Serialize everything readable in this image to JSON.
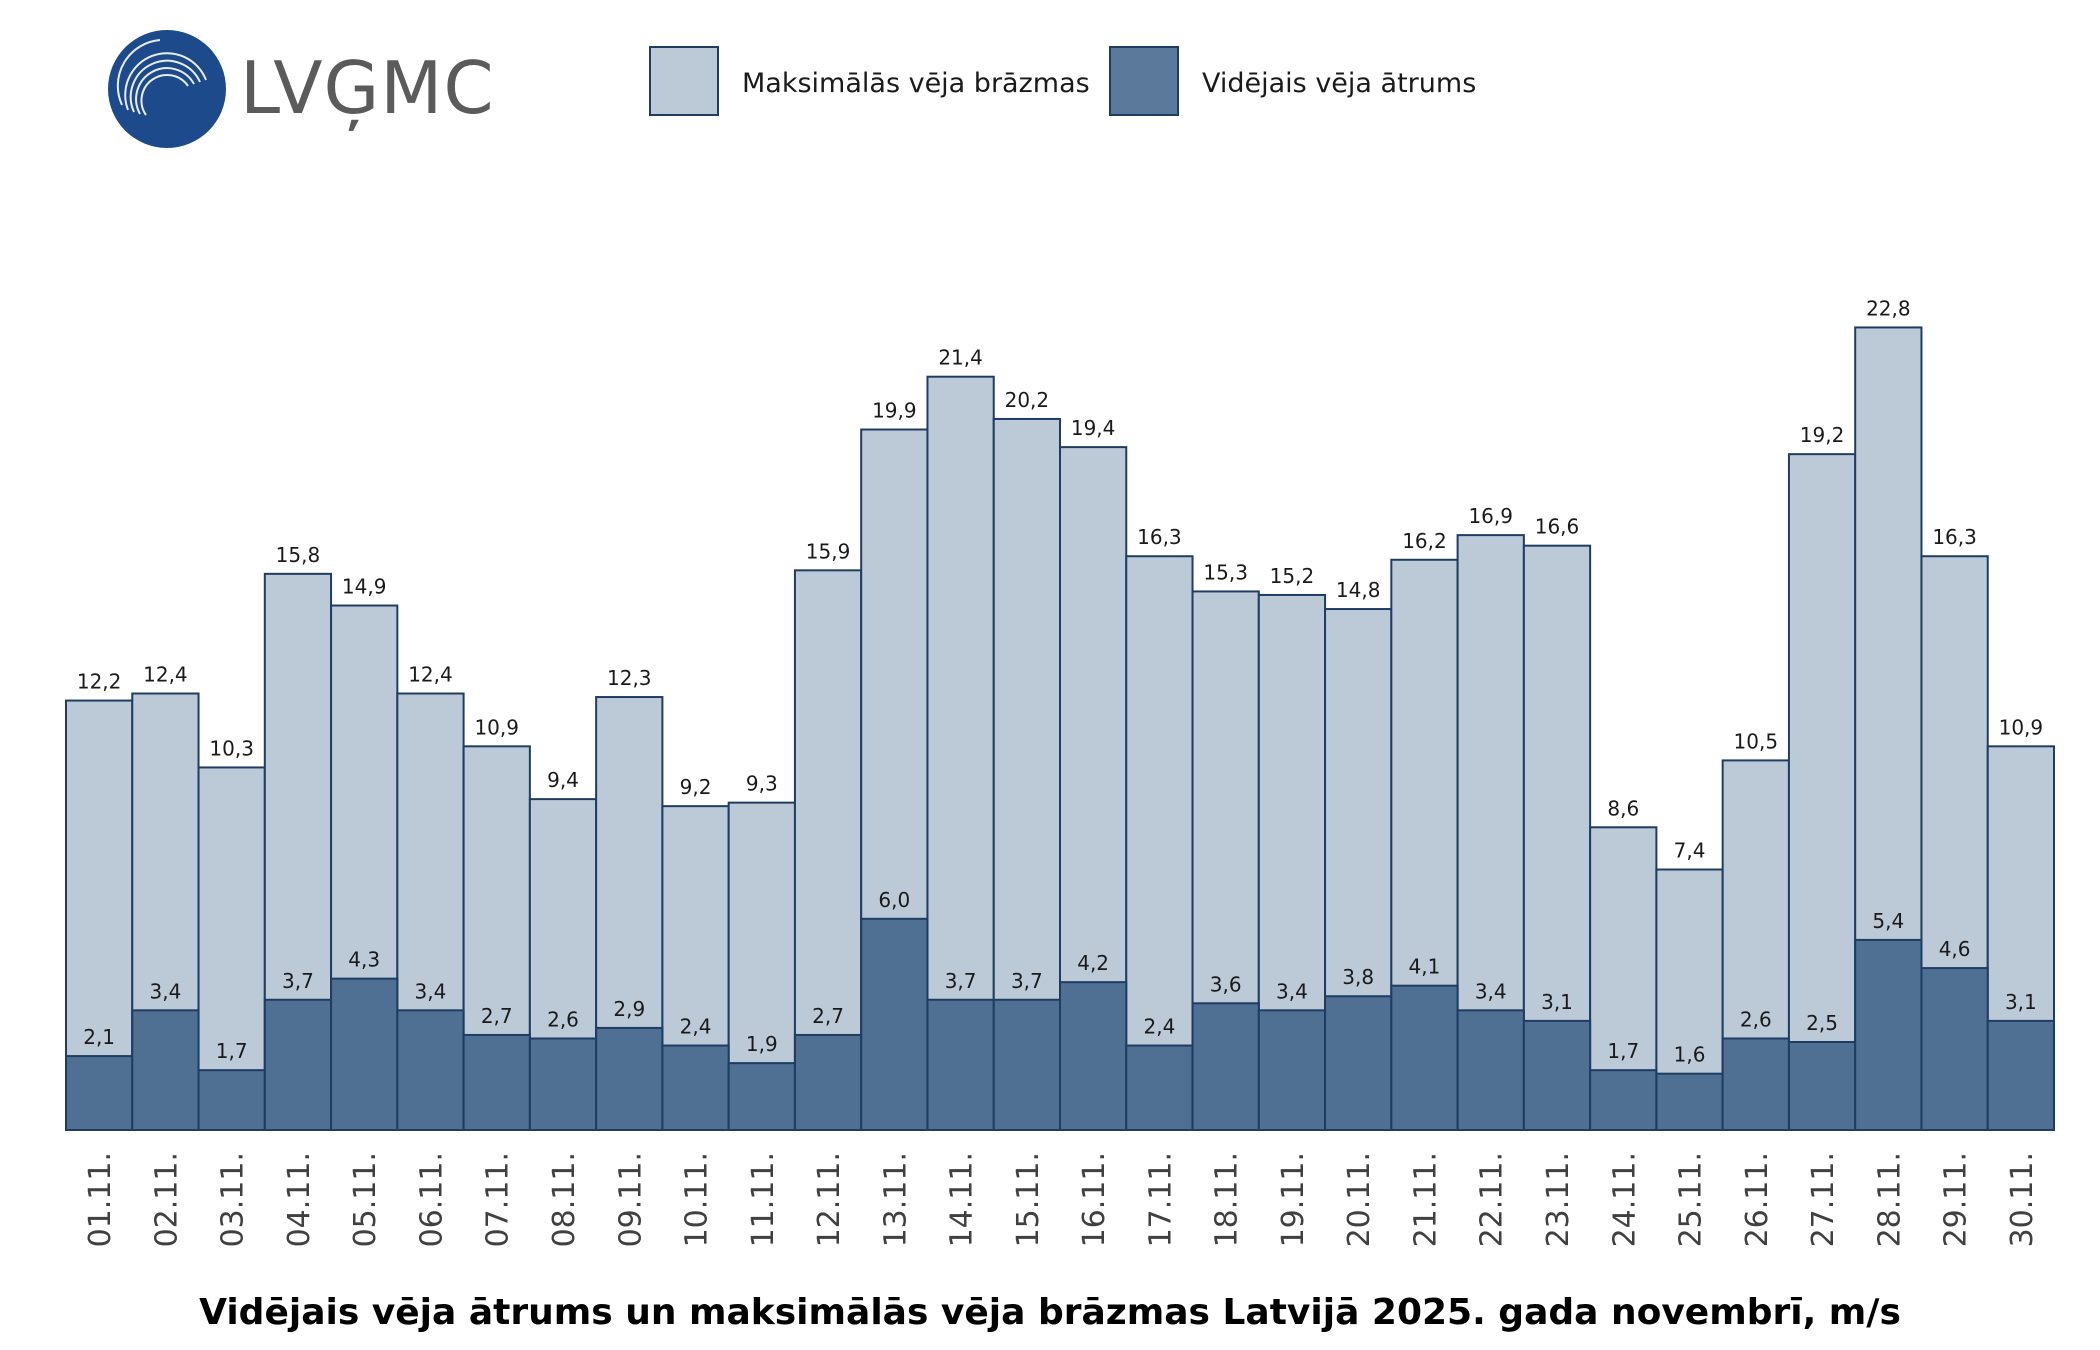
{
  "logo": {
    "text": "LVĢMC"
  },
  "legend": [
    {
      "name": "Maksimālās vēja brāzmas",
      "color": "#bccad8"
    },
    {
      "name": "Vidējais vēja ātrums",
      "color": "#5b7a9b"
    }
  ],
  "colors": {
    "gust_fill": "#bccad8",
    "mean_fill": "#4f6f93",
    "bar_stroke": "#1f3d63",
    "logo_blue": "#1d4a8a",
    "logo_text": "#5b5b5b"
  },
  "chart_data": {
    "type": "bar",
    "title": "Vidējais vēja ātrums un maksimālās vēja brāzmas Latvijā 2025. gada novembrī, m/s",
    "xlabel": "",
    "ylabel": "",
    "ylim": [
      0,
      25
    ],
    "categories": [
      "01.11.",
      "02.11.",
      "03.11.",
      "04.11.",
      "05.11.",
      "06.11.",
      "07.11.",
      "08.11.",
      "09.11.",
      "10.11.",
      "11.11.",
      "12.11.",
      "13.11.",
      "14.11.",
      "15.11.",
      "16.11.",
      "17.11.",
      "18.11.",
      "19.11.",
      "20.11.",
      "21.11.",
      "22.11.",
      "23.11.",
      "24.11.",
      "25.11.",
      "26.11.",
      "27.11.",
      "28.11.",
      "29.11.",
      "30.11."
    ],
    "series": [
      {
        "name": "Maksimālās vēja brāzmas",
        "values": [
          12.2,
          12.4,
          10.3,
          15.8,
          14.9,
          12.4,
          10.9,
          9.4,
          12.3,
          9.2,
          9.3,
          15.9,
          19.9,
          21.4,
          20.2,
          19.4,
          16.3,
          15.3,
          15.2,
          14.8,
          16.2,
          16.9,
          16.6,
          8.6,
          7.4,
          10.5,
          19.2,
          22.8,
          16.3,
          10.9
        ],
        "labels": [
          "12,2",
          "12,4",
          "10,3",
          "15,8",
          "14,9",
          "12,4",
          "10,9",
          "9,4",
          "12,3",
          "9,2",
          "9,3",
          "15,9",
          "19,9",
          "21,4",
          "20,2",
          "19,4",
          "16,3",
          "15,3",
          "15,2",
          "14,8",
          "16,2",
          "16,9",
          "16,6",
          "8,6",
          "7,4",
          "10,5",
          "19,2",
          "22,8",
          "16,3",
          "10,9"
        ]
      },
      {
        "name": "Vidējais vēja ātrums",
        "values": [
          2.1,
          3.4,
          1.7,
          3.7,
          4.3,
          3.4,
          2.7,
          2.6,
          2.9,
          2.4,
          1.9,
          2.7,
          6.0,
          3.7,
          3.7,
          4.2,
          2.4,
          3.6,
          3.4,
          3.8,
          4.1,
          3.4,
          3.1,
          1.7,
          1.6,
          2.6,
          2.5,
          5.4,
          4.6,
          3.1
        ],
        "labels": [
          "2,1",
          "3,4",
          "1,7",
          "3,7",
          "4,3",
          "3,4",
          "2,7",
          "2,6",
          "2,9",
          "2,4",
          "1,9",
          "2,7",
          "6,0",
          "3,7",
          "3,7",
          "4,2",
          "2,4",
          "3,6",
          "3,4",
          "3,8",
          "4,1",
          "3,4",
          "3,1",
          "1,7",
          "1,6",
          "2,6",
          "2,5",
          "5,4",
          "4,6",
          "3,1"
        ]
      }
    ]
  }
}
